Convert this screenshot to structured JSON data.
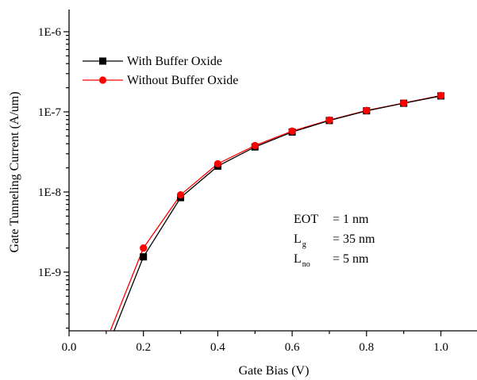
{
  "chart_data": {
    "type": "line",
    "xlabel": "Gate Bias (V)",
    "ylabel": "Gate Tunneling Current (A/um)",
    "xlim": [
      0.0,
      1.1
    ],
    "ylim": [
      1.8e-10,
      1.6e-06
    ],
    "yscale": "log",
    "x_ticks": [
      "0.0",
      "0.2",
      "0.4",
      "0.6",
      "0.8",
      "1.0"
    ],
    "y_ticks": [
      "1E-9",
      "1E-8",
      "1E-7",
      "1E-6"
    ],
    "grid": false,
    "legend_position": "top-left",
    "series": [
      {
        "name": "With Buffer Oxide",
        "color": "#000000",
        "marker": "square",
        "x": [
          0.12,
          0.2,
          0.3,
          0.4,
          0.5,
          0.6,
          0.7,
          0.8,
          0.9,
          1.0
        ],
        "y": [
          1.8e-10,
          1.55e-09,
          8.5e-09,
          2.1e-08,
          3.65e-08,
          5.6e-08,
          7.8e-08,
          1.03e-07,
          1.28e-07,
          1.58e-07
        ],
        "marked": [
          false,
          true,
          true,
          true,
          true,
          true,
          true,
          true,
          true,
          true
        ]
      },
      {
        "name": "Without Buffer Oxide",
        "color": "#ff0000",
        "marker": "circle",
        "x": [
          0.11,
          0.2,
          0.3,
          0.4,
          0.5,
          0.6,
          0.7,
          0.8,
          0.9,
          1.0
        ],
        "y": [
          1.8e-10,
          2e-09,
          9.2e-09,
          2.25e-08,
          3.8e-08,
          5.75e-08,
          7.9e-08,
          1.04e-07,
          1.29e-07,
          1.6e-07
        ],
        "marked": [
          false,
          true,
          true,
          true,
          true,
          true,
          true,
          true,
          true,
          true
        ]
      }
    ],
    "annotations": [
      {
        "label": "EOT",
        "sub": "",
        "value": "= 1 nm"
      },
      {
        "label": "L",
        "sub": "g",
        "value": "= 35 nm"
      },
      {
        "label": "L",
        "sub": "no",
        "value": "= 5 nm"
      }
    ]
  }
}
